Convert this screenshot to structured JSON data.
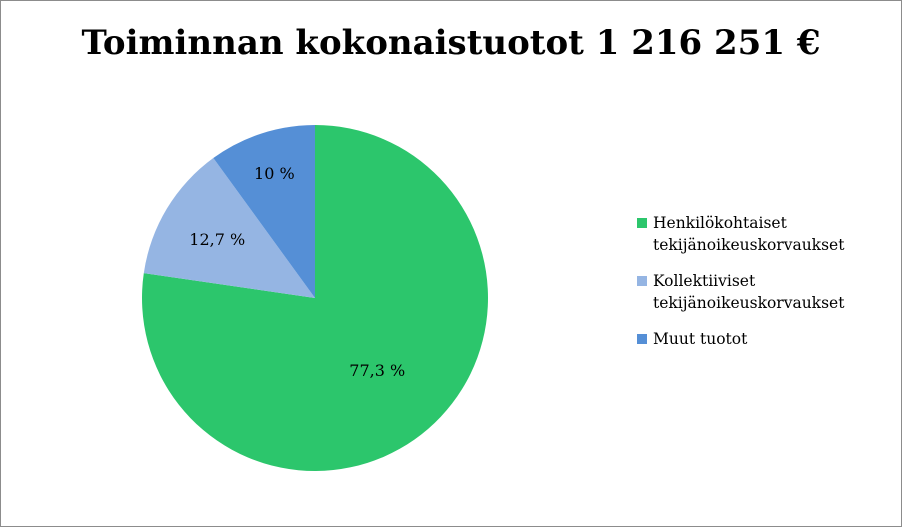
{
  "chart_data": {
    "type": "pie",
    "title": "Toiminnan kokonaistuotot 1 216 251 €",
    "slices": [
      {
        "name": "Henkilökohtaiset\ntekijänoikeuskorvaukset",
        "value": 77.3,
        "label": "77,3 %",
        "color": "#2cc66c"
      },
      {
        "name": "Kollektiiviset\ntekijänoikeuskorvaukset",
        "value": 12.7,
        "label": "12,7 %",
        "color": "#95b5e3"
      },
      {
        "name": "Muut tuotot",
        "value": 10,
        "label": "10 %",
        "color": "#558fd6"
      }
    ],
    "legend_position": "right"
  }
}
